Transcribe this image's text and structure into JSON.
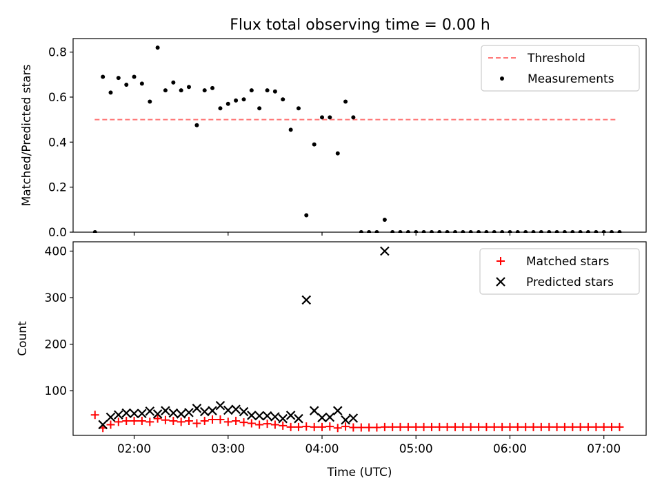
{
  "title": "Flux total observing time = 0.00 h",
  "chart_data": [
    {
      "type": "scatter",
      "ylabel": "Matched/Predicted stars",
      "xlabel": "",
      "xlim": [
        1.35,
        7.45
      ],
      "ylim": [
        0.0,
        0.86
      ],
      "yticks": [
        0.0,
        0.2,
        0.4,
        0.6,
        0.8
      ],
      "ytick_labels": [
        "0.0",
        "0.2",
        "0.4",
        "0.6",
        "0.8"
      ],
      "xticks": [
        2,
        3,
        4,
        5,
        6,
        7
      ],
      "show_x_tick_labels": false,
      "grid": false,
      "legend_placement": "top-right",
      "threshold": {
        "name": "Threshold",
        "y": 0.5,
        "x_start": 1.58,
        "x_end": 7.15,
        "color": "#ff7777",
        "style": "dashed"
      },
      "series": [
        {
          "name": "Measurements",
          "color": "#000000",
          "marker": "dot",
          "points": [
            [
              1.583,
              0.0
            ],
            [
              1.667,
              0.69
            ],
            [
              1.75,
              0.62
            ],
            [
              1.833,
              0.685
            ],
            [
              1.917,
              0.655
            ],
            [
              2.0,
              0.69
            ],
            [
              2.083,
              0.66
            ],
            [
              2.167,
              0.58
            ],
            [
              2.25,
              0.82
            ],
            [
              2.333,
              0.63
            ],
            [
              2.417,
              0.665
            ],
            [
              2.5,
              0.63
            ],
            [
              2.583,
              0.645
            ],
            [
              2.667,
              0.475
            ],
            [
              2.75,
              0.63
            ],
            [
              2.833,
              0.64
            ],
            [
              2.917,
              0.55
            ],
            [
              3.0,
              0.57
            ],
            [
              3.083,
              0.585
            ],
            [
              3.167,
              0.59
            ],
            [
              3.25,
              0.63
            ],
            [
              3.333,
              0.55
            ],
            [
              3.417,
              0.63
            ],
            [
              3.5,
              0.625
            ],
            [
              3.583,
              0.59
            ],
            [
              3.667,
              0.455
            ],
            [
              3.75,
              0.55
            ],
            [
              3.833,
              0.075
            ],
            [
              3.917,
              0.39
            ],
            [
              4.0,
              0.51
            ],
            [
              4.083,
              0.51
            ],
            [
              4.167,
              0.35
            ],
            [
              4.25,
              0.58
            ],
            [
              4.333,
              0.51
            ],
            [
              4.417,
              0.0
            ],
            [
              4.5,
              0.0
            ],
            [
              4.583,
              0.0
            ],
            [
              4.667,
              0.055
            ],
            [
              4.75,
              0.0
            ],
            [
              4.833,
              0.0
            ],
            [
              4.917,
              0.0
            ],
            [
              5.0,
              0.0
            ],
            [
              5.083,
              0.0
            ],
            [
              5.167,
              0.0
            ],
            [
              5.25,
              0.0
            ],
            [
              5.333,
              0.0
            ],
            [
              5.417,
              0.0
            ],
            [
              5.5,
              0.0
            ],
            [
              5.583,
              0.0
            ],
            [
              5.667,
              0.0
            ],
            [
              5.75,
              0.0
            ],
            [
              5.833,
              0.0
            ],
            [
              5.917,
              0.0
            ],
            [
              6.0,
              0.0
            ],
            [
              6.083,
              0.0
            ],
            [
              6.167,
              0.0
            ],
            [
              6.25,
              0.0
            ],
            [
              6.333,
              0.0
            ],
            [
              6.417,
              0.0
            ],
            [
              6.5,
              0.0
            ],
            [
              6.583,
              0.0
            ],
            [
              6.667,
              0.0
            ],
            [
              6.75,
              0.0
            ],
            [
              6.833,
              0.0
            ],
            [
              6.917,
              0.0
            ],
            [
              7.0,
              0.0
            ],
            [
              7.083,
              0.0
            ],
            [
              7.167,
              0.0
            ]
          ]
        }
      ]
    },
    {
      "type": "scatter",
      "xlabel": "Time (UTC)",
      "ylabel": "Count",
      "xlim": [
        1.35,
        7.45
      ],
      "ylim": [
        4,
        420
      ],
      "yticks": [
        100,
        200,
        300,
        400
      ],
      "ytick_labels": [
        "100",
        "200",
        "300",
        "400"
      ],
      "xticks": [
        2,
        3,
        4,
        5,
        6,
        7
      ],
      "xtick_labels": [
        "02:00",
        "03:00",
        "04:00",
        "05:00",
        "06:00",
        "07:00"
      ],
      "grid": false,
      "legend_placement": "top-right",
      "series": [
        {
          "name": "Matched stars",
          "color": "#ff0000",
          "marker": "plus",
          "points": [
            [
              1.583,
              48
            ],
            [
              1.667,
              20
            ],
            [
              1.75,
              27
            ],
            [
              1.833,
              33
            ],
            [
              1.917,
              35
            ],
            [
              2.0,
              35
            ],
            [
              2.083,
              35
            ],
            [
              2.167,
              33
            ],
            [
              2.25,
              40
            ],
            [
              2.333,
              37
            ],
            [
              2.417,
              35
            ],
            [
              2.5,
              33
            ],
            [
              2.583,
              35
            ],
            [
              2.667,
              30
            ],
            [
              2.75,
              35
            ],
            [
              2.833,
              38
            ],
            [
              2.917,
              38
            ],
            [
              3.0,
              33
            ],
            [
              3.083,
              35
            ],
            [
              3.167,
              32
            ],
            [
              3.25,
              30
            ],
            [
              3.333,
              27
            ],
            [
              3.417,
              29
            ],
            [
              3.5,
              27
            ],
            [
              3.583,
              25
            ],
            [
              3.667,
              22
            ],
            [
              3.75,
              22
            ],
            [
              3.833,
              23
            ],
            [
              3.917,
              22
            ],
            [
              4.0,
              22
            ],
            [
              4.083,
              23
            ],
            [
              4.167,
              20
            ],
            [
              4.25,
              23
            ],
            [
              4.333,
              21
            ],
            [
              4.417,
              21
            ],
            [
              4.5,
              21
            ],
            [
              4.583,
              21
            ],
            [
              4.667,
              22
            ],
            [
              4.75,
              22
            ],
            [
              4.833,
              22
            ],
            [
              4.917,
              22
            ],
            [
              5.0,
              22
            ],
            [
              5.083,
              22
            ],
            [
              5.167,
              22
            ],
            [
              5.25,
              22
            ],
            [
              5.333,
              22
            ],
            [
              5.417,
              22
            ],
            [
              5.5,
              22
            ],
            [
              5.583,
              22
            ],
            [
              5.667,
              22
            ],
            [
              5.75,
              22
            ],
            [
              5.833,
              22
            ],
            [
              5.917,
              22
            ],
            [
              6.0,
              22
            ],
            [
              6.083,
              22
            ],
            [
              6.167,
              22
            ],
            [
              6.25,
              22
            ],
            [
              6.333,
              22
            ],
            [
              6.417,
              22
            ],
            [
              6.5,
              22
            ],
            [
              6.583,
              22
            ],
            [
              6.667,
              22
            ],
            [
              6.75,
              22
            ],
            [
              6.833,
              22
            ],
            [
              6.917,
              22
            ],
            [
              7.0,
              22
            ],
            [
              7.083,
              22
            ],
            [
              7.167,
              22
            ]
          ]
        },
        {
          "name": "Predicted stars",
          "color": "#000000",
          "marker": "cross",
          "points": [
            [
              1.667,
              27
            ],
            [
              1.75,
              43
            ],
            [
              1.833,
              48
            ],
            [
              1.917,
              52
            ],
            [
              2.0,
              51
            ],
            [
              2.083,
              51
            ],
            [
              2.167,
              56
            ],
            [
              2.25,
              50
            ],
            [
              2.333,
              57
            ],
            [
              2.417,
              52
            ],
            [
              2.5,
              50
            ],
            [
              2.583,
              53
            ],
            [
              2.667,
              62
            ],
            [
              2.75,
              55
            ],
            [
              2.833,
              57
            ],
            [
              2.917,
              68
            ],
            [
              3.0,
              58
            ],
            [
              3.083,
              60
            ],
            [
              3.167,
              55
            ],
            [
              3.25,
              47
            ],
            [
              3.333,
              46
            ],
            [
              3.417,
              46
            ],
            [
              3.5,
              44
            ],
            [
              3.583,
              40
            ],
            [
              3.667,
              47
            ],
            [
              3.75,
              40
            ],
            [
              3.833,
              295
            ],
            [
              3.917,
              57
            ],
            [
              4.0,
              42
            ],
            [
              4.083,
              43
            ],
            [
              4.167,
              57
            ],
            [
              4.25,
              37
            ],
            [
              4.333,
              41
            ],
            [
              4.667,
              400
            ]
          ]
        }
      ]
    }
  ]
}
